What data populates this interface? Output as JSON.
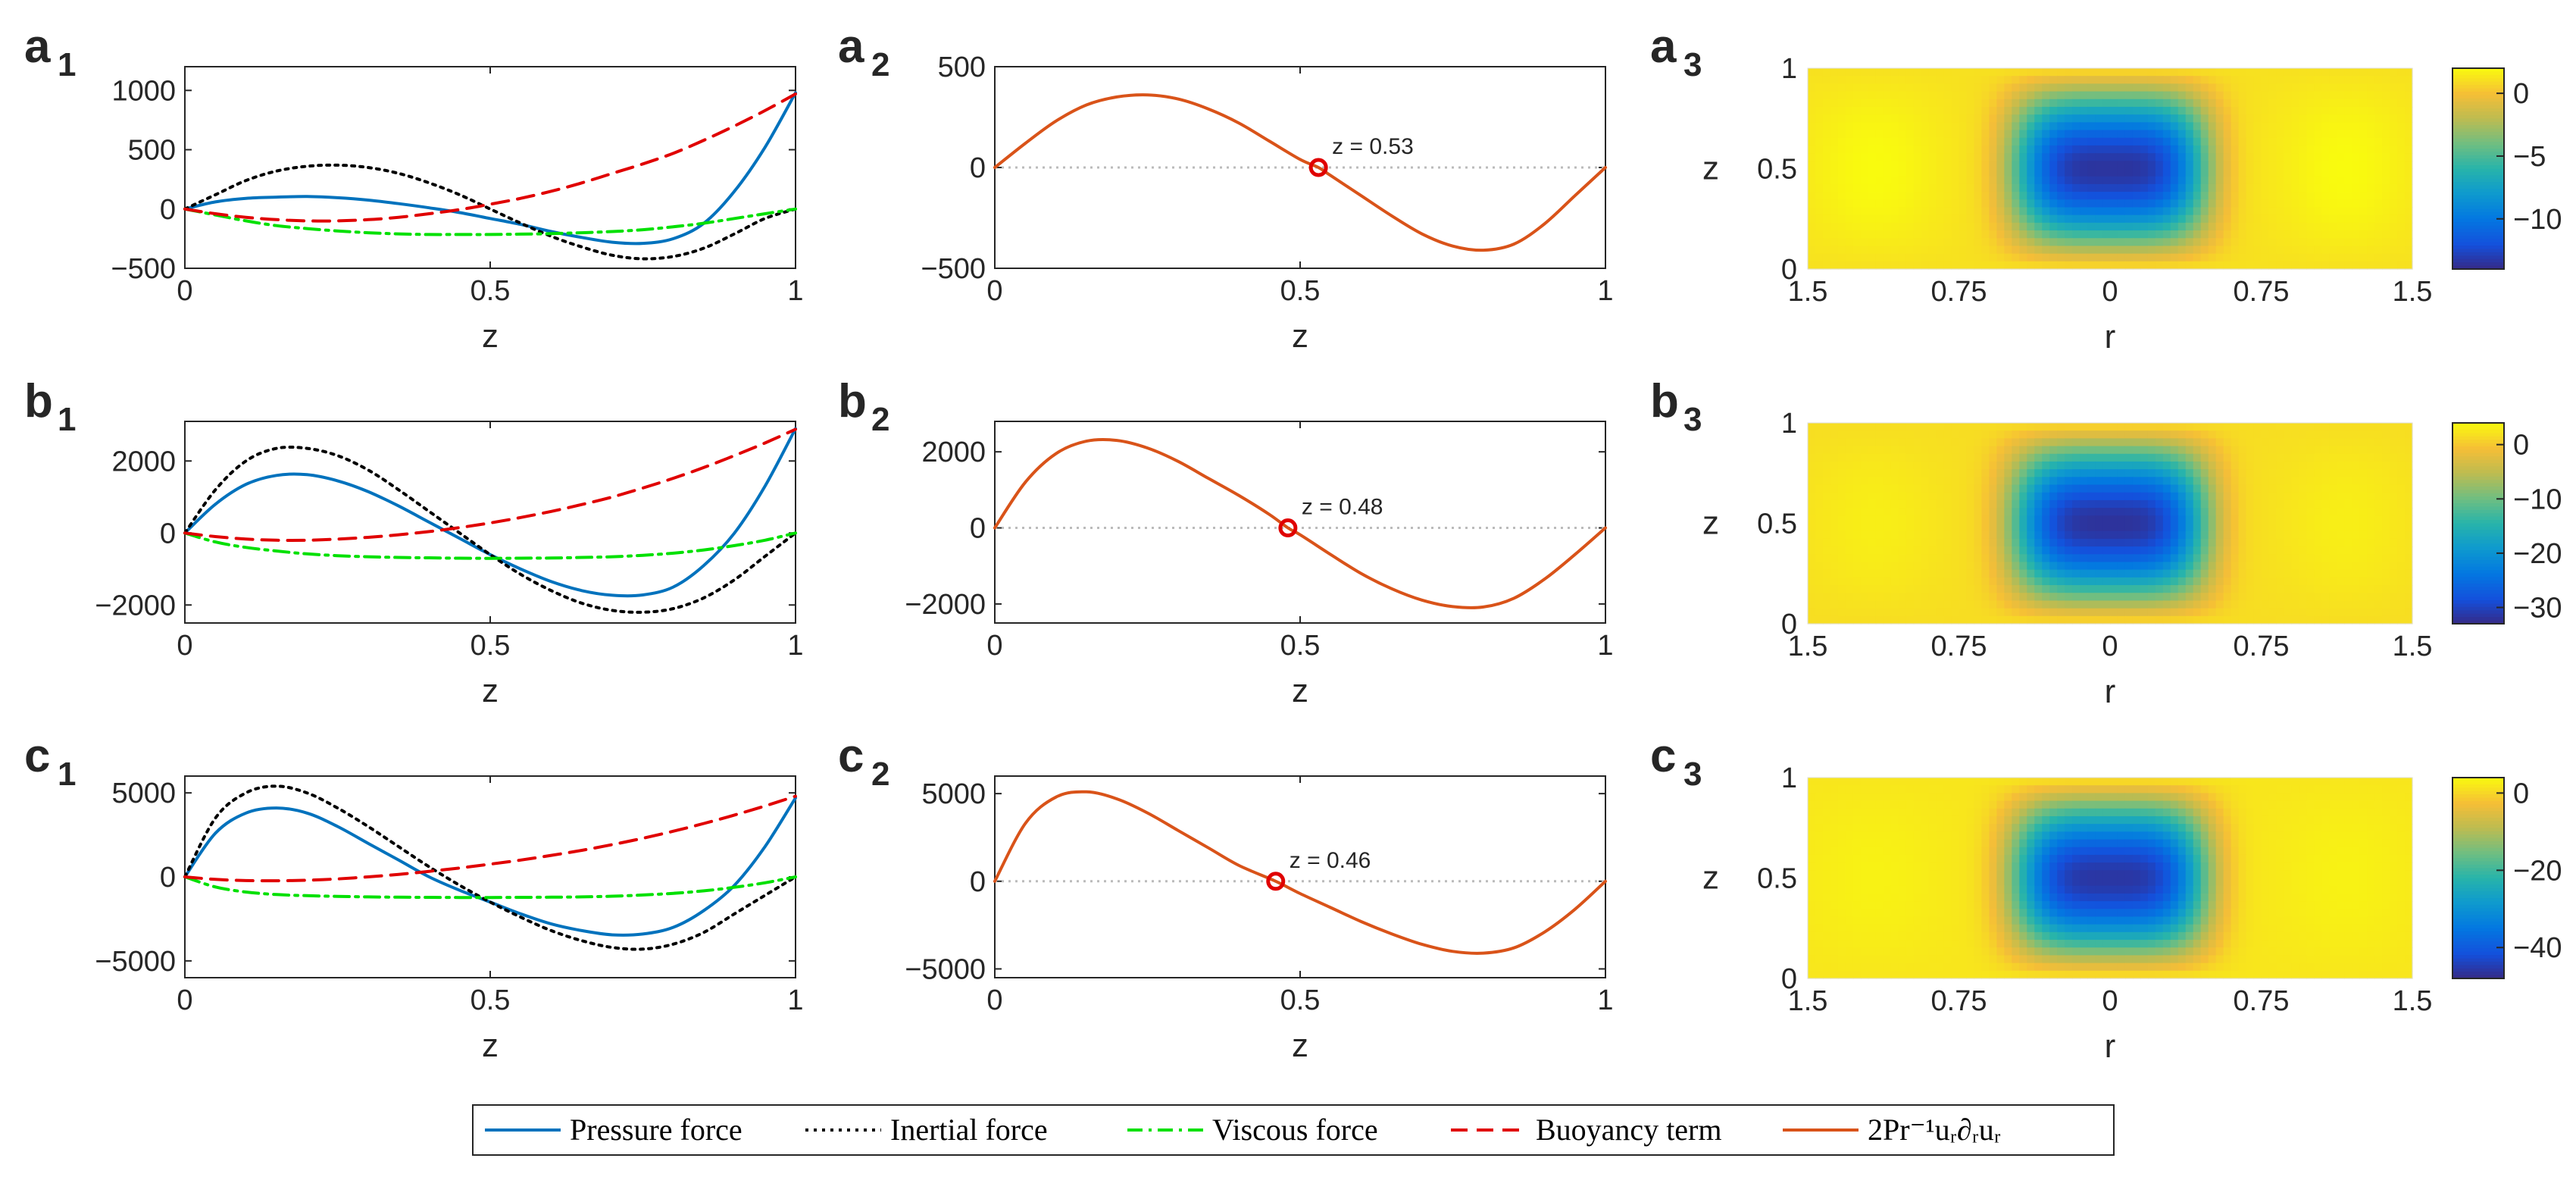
{
  "legend": {
    "items": [
      {
        "label": "Pressure force",
        "color": "#0072BD",
        "style": "solid"
      },
      {
        "label": "Inertial force",
        "color": "#000000",
        "style": "dotted"
      },
      {
        "label": "Viscous force",
        "color": "#00E000",
        "style": "dashdot"
      },
      {
        "label": "Buoyancy term",
        "color": "#E00000",
        "style": "dashed"
      },
      {
        "label": "2Pr⁻¹uᵣ∂ᵣuᵣ",
        "color": "#D95319",
        "style": "solid"
      }
    ]
  },
  "chart_data": [
    {
      "panel": "a1",
      "panel_letter": "a",
      "panel_sub": "1",
      "type": "line",
      "xlabel": "z",
      "ylabel": "",
      "xlim": [
        0,
        1
      ],
      "ylim": [
        -500,
        1200
      ],
      "xticks": [
        "0",
        "0.5",
        "1"
      ],
      "yticks": [
        -500,
        0,
        500,
        1000
      ],
      "ytick_labels": [
        "−500",
        "0",
        "500",
        "1000"
      ],
      "x": [
        0,
        0.05,
        0.1,
        0.15,
        0.2,
        0.25,
        0.3,
        0.35,
        0.4,
        0.45,
        0.5,
        0.55,
        0.6,
        0.65,
        0.7,
        0.75,
        0.8,
        0.85,
        0.9,
        0.95,
        1
      ],
      "series": [
        {
          "name": "Pressure force",
          "values": [
            0,
            60,
            90,
            100,
            105,
            95,
            75,
            45,
            10,
            -30,
            -80,
            -130,
            -190,
            -240,
            -280,
            -290,
            -250,
            -120,
            150,
            520,
            980
          ]
        },
        {
          "name": "Inertial force",
          "values": [
            0,
            120,
            240,
            320,
            360,
            370,
            350,
            300,
            220,
            120,
            0,
            -120,
            -230,
            -320,
            -390,
            -420,
            -400,
            -330,
            -210,
            -80,
            0
          ]
        },
        {
          "name": "Viscous force",
          "values": [
            0,
            -50,
            -100,
            -140,
            -165,
            -185,
            -200,
            -210,
            -215,
            -215,
            -215,
            -212,
            -208,
            -200,
            -190,
            -175,
            -150,
            -120,
            -80,
            -40,
            0
          ]
        },
        {
          "name": "Buoyancy term",
          "values": [
            0,
            -40,
            -70,
            -90,
            -100,
            -100,
            -90,
            -70,
            -40,
            -5,
            40,
            90,
            150,
            220,
            300,
            380,
            470,
            580,
            700,
            830,
            970
          ]
        }
      ]
    },
    {
      "panel": "a2",
      "panel_letter": "a",
      "panel_sub": "2",
      "type": "line",
      "xlabel": "z",
      "ylabel": "",
      "xlim": [
        0,
        1
      ],
      "ylim": [
        -500,
        500
      ],
      "xticks": [
        "0",
        "0.5",
        "1"
      ],
      "yticks": [
        -500,
        0,
        500
      ],
      "ytick_labels": [
        "−500",
        "0",
        "500"
      ],
      "x": [
        0,
        0.05,
        0.1,
        0.15,
        0.2,
        0.25,
        0.3,
        0.35,
        0.4,
        0.45,
        0.5,
        0.53,
        0.55,
        0.6,
        0.65,
        0.7,
        0.75,
        0.8,
        0.85,
        0.9,
        0.95,
        1
      ],
      "series": [
        {
          "name": "2Pr⁻¹uᵣ∂ᵣuᵣ",
          "values": [
            0,
            120,
            230,
            310,
            350,
            360,
            340,
            290,
            220,
            130,
            40,
            0,
            -40,
            -140,
            -240,
            -330,
            -390,
            -410,
            -380,
            -280,
            -140,
            0
          ]
        }
      ],
      "marker": {
        "x": 0.53,
        "y": 0,
        "label": "z = 0.53"
      }
    },
    {
      "panel": "a3",
      "panel_letter": "a",
      "panel_sub": "3",
      "type": "heatmap",
      "xlabel": "r",
      "ylabel": "z",
      "xticks": [
        "1.5",
        "0.75",
        "0",
        "0.75",
        "1.5"
      ],
      "yticks": [
        "0",
        "0.5",
        "1"
      ],
      "colorbar": {
        "ticks": [
          "0",
          "−5",
          "−10"
        ],
        "tick_values": [
          0,
          -5,
          -10
        ],
        "min": -14,
        "max": 2
      },
      "field_min": -13.5,
      "field_max": 2
    },
    {
      "panel": "b1",
      "panel_letter": "b",
      "panel_sub": "1",
      "type": "line",
      "xlabel": "z",
      "ylabel": "",
      "xlim": [
        0,
        1
      ],
      "ylim": [
        -2500,
        3100
      ],
      "xticks": [
        "0",
        "0.5",
        "1"
      ],
      "yticks": [
        -2000,
        0,
        2000
      ],
      "ytick_labels": [
        "−2000",
        "0",
        "2000"
      ],
      "x": [
        0,
        0.05,
        0.1,
        0.15,
        0.2,
        0.25,
        0.3,
        0.35,
        0.4,
        0.45,
        0.5,
        0.55,
        0.6,
        0.65,
        0.7,
        0.75,
        0.8,
        0.85,
        0.9,
        0.95,
        1
      ],
      "series": [
        {
          "name": "Pressure force",
          "values": [
            0,
            800,
            1350,
            1600,
            1620,
            1450,
            1150,
            750,
            300,
            -150,
            -600,
            -1000,
            -1350,
            -1600,
            -1730,
            -1720,
            -1500,
            -900,
            0,
            1300,
            2900
          ]
        },
        {
          "name": "Inertial force",
          "values": [
            0,
            1200,
            2000,
            2350,
            2350,
            2150,
            1750,
            1200,
            600,
            0,
            -600,
            -1150,
            -1600,
            -1950,
            -2150,
            -2200,
            -2100,
            -1800,
            -1300,
            -650,
            0
          ]
        },
        {
          "name": "Viscous force",
          "values": [
            0,
            -250,
            -400,
            -500,
            -580,
            -630,
            -660,
            -680,
            -690,
            -700,
            -705,
            -700,
            -695,
            -680,
            -660,
            -620,
            -560,
            -470,
            -350,
            -200,
            0
          ]
        },
        {
          "name": "Buoyancy term",
          "values": [
            0,
            -100,
            -170,
            -200,
            -200,
            -170,
            -120,
            -50,
            40,
            150,
            280,
            430,
            600,
            790,
            1000,
            1250,
            1520,
            1820,
            2150,
            2500,
            2880
          ]
        }
      ]
    },
    {
      "panel": "b2",
      "panel_letter": "b",
      "panel_sub": "2",
      "type": "line",
      "xlabel": "z",
      "ylabel": "",
      "xlim": [
        0,
        1
      ],
      "ylim": [
        -2500,
        2800
      ],
      "xticks": [
        "0",
        "0.5",
        "1"
      ],
      "yticks": [
        -2000,
        0,
        2000
      ],
      "ytick_labels": [
        "−2000",
        "0",
        "2000"
      ],
      "x": [
        0,
        0.05,
        0.1,
        0.15,
        0.2,
        0.25,
        0.3,
        0.35,
        0.4,
        0.45,
        0.48,
        0.5,
        0.55,
        0.6,
        0.65,
        0.7,
        0.75,
        0.8,
        0.85,
        0.9,
        0.95,
        1
      ],
      "series": [
        {
          "name": "2Pr⁻¹uᵣ∂ᵣuᵣ",
          "values": [
            0,
            1200,
            1950,
            2280,
            2300,
            2100,
            1750,
            1300,
            850,
            350,
            0,
            -180,
            -700,
            -1200,
            -1600,
            -1900,
            -2070,
            -2080,
            -1850,
            -1350,
            -700,
            0
          ]
        }
      ],
      "marker": {
        "x": 0.48,
        "y": 0,
        "label": "z = 0.48"
      }
    },
    {
      "panel": "b3",
      "panel_letter": "b",
      "panel_sub": "3",
      "type": "heatmap",
      "xlabel": "r",
      "ylabel": "z",
      "xticks": [
        "1.5",
        "0.75",
        "0",
        "0.75",
        "1.5"
      ],
      "yticks": [
        "0",
        "0.5",
        "1"
      ],
      "colorbar": {
        "ticks": [
          "0",
          "−10",
          "−20",
          "−30"
        ],
        "tick_values": [
          0,
          -10,
          -20,
          -30
        ],
        "min": -33,
        "max": 4
      },
      "field_min": -32,
      "field_max": 3
    },
    {
      "panel": "c1",
      "panel_letter": "c",
      "panel_sub": "1",
      "type": "line",
      "xlabel": "z",
      "ylabel": "",
      "xlim": [
        0,
        1
      ],
      "ylim": [
        -6000,
        6000
      ],
      "xticks": [
        "0",
        "0.5",
        "1"
      ],
      "yticks": [
        -5000,
        0,
        5000
      ],
      "ytick_labels": [
        "−5000",
        "0",
        "5000"
      ],
      "x": [
        0,
        0.05,
        0.1,
        0.15,
        0.2,
        0.25,
        0.3,
        0.35,
        0.4,
        0.45,
        0.5,
        0.55,
        0.6,
        0.65,
        0.7,
        0.75,
        0.8,
        0.85,
        0.9,
        0.95,
        1
      ],
      "series": [
        {
          "name": "Pressure force",
          "values": [
            0,
            2600,
            3800,
            4100,
            3800,
            3000,
            2000,
            1000,
            0,
            -800,
            -1500,
            -2200,
            -2800,
            -3200,
            -3450,
            -3400,
            -3000,
            -2000,
            -500,
            1800,
            4700
          ]
        },
        {
          "name": "Inertial force",
          "values": [
            0,
            3500,
            5000,
            5400,
            5000,
            4100,
            3000,
            1800,
            600,
            -500,
            -1500,
            -2400,
            -3200,
            -3800,
            -4200,
            -4300,
            -4000,
            -3300,
            -2200,
            -1100,
            0
          ]
        },
        {
          "name": "Viscous force",
          "values": [
            0,
            -600,
            -900,
            -1050,
            -1120,
            -1160,
            -1190,
            -1210,
            -1220,
            -1225,
            -1225,
            -1220,
            -1210,
            -1190,
            -1150,
            -1080,
            -980,
            -830,
            -620,
            -350,
            0
          ]
        },
        {
          "name": "Buoyancy term",
          "values": [
            0,
            -150,
            -220,
            -230,
            -200,
            -120,
            0,
            150,
            330,
            530,
            760,
            1000,
            1280,
            1580,
            1920,
            2300,
            2720,
            3180,
            3680,
            4220,
            4800
          ]
        }
      ]
    },
    {
      "panel": "c2",
      "panel_letter": "c",
      "panel_sub": "2",
      "type": "line",
      "xlabel": "z",
      "ylabel": "",
      "xlim": [
        0,
        1
      ],
      "ylim": [
        -5500,
        6000
      ],
      "xticks": [
        "0",
        "0.5",
        "1"
      ],
      "yticks": [
        -5000,
        0,
        5000
      ],
      "ytick_labels": [
        "−5000",
        "0",
        "5000"
      ],
      "x": [
        0,
        0.05,
        0.1,
        0.15,
        0.2,
        0.25,
        0.3,
        0.35,
        0.4,
        0.46,
        0.5,
        0.55,
        0.6,
        0.65,
        0.7,
        0.75,
        0.8,
        0.85,
        0.9,
        0.95,
        1
      ],
      "series": [
        {
          "name": "2Pr⁻¹uᵣ∂ᵣuᵣ",
          "values": [
            0,
            3300,
            4800,
            5100,
            4700,
            3900,
            2900,
            1900,
            900,
            0,
            -700,
            -1500,
            -2300,
            -3000,
            -3600,
            -4000,
            -4100,
            -3800,
            -2900,
            -1600,
            0
          ]
        }
      ],
      "marker": {
        "x": 0.46,
        "y": 0,
        "label": "z = 0.46"
      }
    },
    {
      "panel": "c3",
      "panel_letter": "c",
      "panel_sub": "3",
      "type": "heatmap",
      "xlabel": "r",
      "ylabel": "z",
      "xticks": [
        "1.5",
        "0.75",
        "0",
        "0.75",
        "1.5"
      ],
      "yticks": [
        "0",
        "0.5",
        "1"
      ],
      "colorbar": {
        "ticks": [
          "0",
          "−20",
          "−40"
        ],
        "tick_values": [
          0,
          -20,
          -40
        ],
        "min": -48,
        "max": 4
      },
      "field_min": -46,
      "field_max": 3
    }
  ]
}
